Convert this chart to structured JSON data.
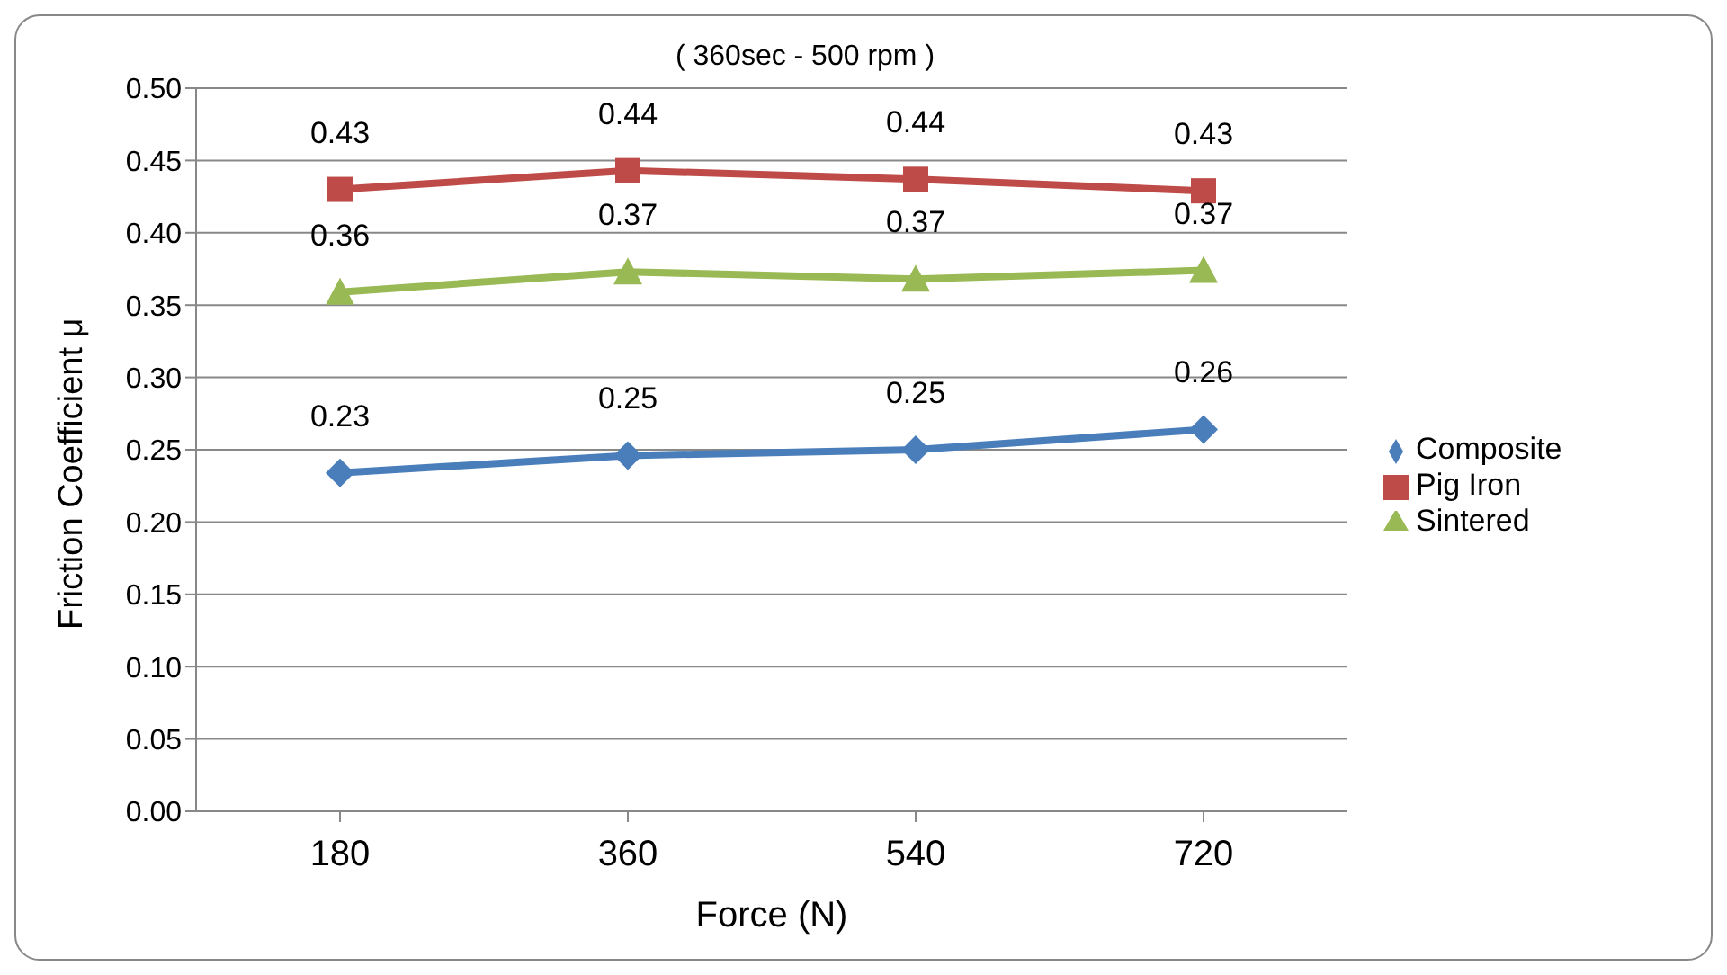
{
  "chart_data": {
    "type": "line",
    "title": "( 360sec - 500 rpm )",
    "xlabel": "Force (N)",
    "ylabel": "Friction Coefficient μ",
    "categories": [
      "180",
      "360",
      "540",
      "720"
    ],
    "series": [
      {
        "name": "Composite",
        "color": "#4a7ebb",
        "marker": "diamond",
        "values": [
          0.234,
          0.246,
          0.25,
          0.264
        ],
        "value_labels": [
          "0.23",
          "0.25",
          "0.25",
          "0.26"
        ]
      },
      {
        "name": "Pig Iron",
        "color": "#be4b48",
        "marker": "square",
        "values": [
          0.43,
          0.443,
          0.437,
          0.429
        ],
        "value_labels": [
          "0.43",
          "0.44",
          "0.44",
          "0.43"
        ]
      },
      {
        "name": "Sintered",
        "color": "#98b954",
        "marker": "triangle",
        "values": [
          0.359,
          0.373,
          0.368,
          0.374
        ],
        "value_labels": [
          "0.36",
          "0.37",
          "0.37",
          "0.37"
        ]
      }
    ],
    "ylim": [
      0,
      0.5
    ],
    "yticks": [
      {
        "value": 0,
        "label": "0.00"
      },
      {
        "value": 0.05,
        "label": "0.05"
      },
      {
        "value": 0.1,
        "label": "0.10"
      },
      {
        "value": 0.15,
        "label": "0.15"
      },
      {
        "value": 0.2,
        "label": "0.20"
      },
      {
        "value": 0.25,
        "label": "0.25"
      },
      {
        "value": 0.3,
        "label": "0.30"
      },
      {
        "value": 0.35,
        "label": "0.35"
      },
      {
        "value": 0.4,
        "label": "0.40"
      },
      {
        "value": 0.45,
        "label": "0.45"
      },
      {
        "value": 0.5,
        "label": "0.50"
      }
    ],
    "grid": "y",
    "legend": "right",
    "line_style": "solid"
  }
}
